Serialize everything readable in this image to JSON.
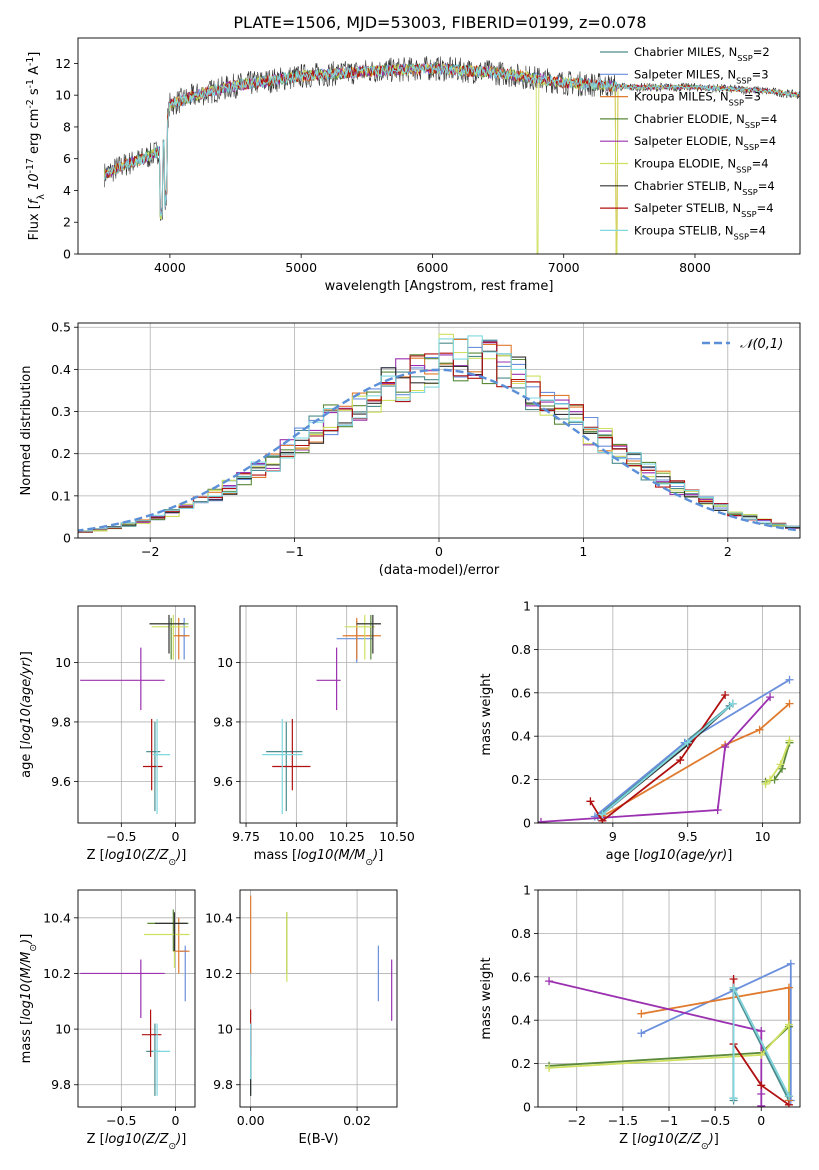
{
  "title": "PLATE=1506, MJD=53003, FIBERID=0199, z=0.078",
  "models": [
    {
      "label": "Chabrier MILES, N$_{SSP}$=2",
      "imf": "Chabrier",
      "lib": "MILES",
      "n_ssp": 2,
      "color": "#4c8c8c"
    },
    {
      "label": "Salpeter MILES, N$_{SSP}$=3",
      "imf": "Salpeter",
      "lib": "MILES",
      "n_ssp": 3,
      "color": "#6a8fdc"
    },
    {
      "label": "Kroupa MILES, N$_{SSP}$=3",
      "imf": "Kroupa",
      "lib": "MILES",
      "n_ssp": 3,
      "color": "#e07a2e"
    },
    {
      "label": "Chabrier ELODIE, N$_{SSP}$=4",
      "imf": "Chabrier",
      "lib": "ELODIE",
      "n_ssp": 4,
      "color": "#5a8a3a"
    },
    {
      "label": "Salpeter ELODIE, N$_{SSP}$=4",
      "imf": "Salpeter",
      "lib": "ELODIE",
      "n_ssp": 4,
      "color": "#9b30b0"
    },
    {
      "label": "Kroupa ELODIE, N$_{SSP}$=4",
      "imf": "Kroupa",
      "lib": "ELODIE",
      "n_ssp": 4,
      "color": "#cfe060"
    },
    {
      "label": "Chabrier STELIB, N$_{SSP}$=4",
      "imf": "Chabrier",
      "lib": "STELIB",
      "n_ssp": 4,
      "color": "#333333"
    },
    {
      "label": "Salpeter STELIB, N$_{SSP}$=4",
      "imf": "Salpeter",
      "lib": "STELIB",
      "n_ssp": 4,
      "color": "#b01010"
    },
    {
      "label": "Kroupa STELIB, N$_{SSP}$=4",
      "imf": "Kroupa",
      "lib": "STELIB",
      "n_ssp": 4,
      "color": "#7fd8e0"
    }
  ],
  "chart_data": [
    {
      "id": "spectrum",
      "type": "line",
      "xlabel": "wavelength [Angstrom, rest frame]",
      "ylabel": "Flux [$f_\\lambda 10^{-17}$ erg cm$^{-2}$ s$^{-1}$ A$^{-1}$]",
      "xlim": [
        3300,
        8800
      ],
      "ylim": [
        0,
        13.6
      ],
      "xticks": [
        4000,
        5000,
        6000,
        7000,
        8000
      ],
      "yticks": [
        0,
        2,
        4,
        6,
        8,
        10,
        12
      ],
      "grid": false,
      "legend": "right",
      "continuum": [
        [
          3500,
          5.0
        ],
        [
          3650,
          5.6
        ],
        [
          3800,
          6.0
        ],
        [
          3950,
          6.6
        ],
        [
          4000,
          9.4
        ],
        [
          4200,
          10.0
        ],
        [
          4500,
          10.6
        ],
        [
          5000,
          11.2
        ],
        [
          5500,
          11.5
        ],
        [
          6000,
          11.7
        ],
        [
          6500,
          11.4
        ],
        [
          7000,
          10.8
        ],
        [
          7500,
          10.5
        ],
        [
          8000,
          10.5
        ],
        [
          8500,
          10.3
        ],
        [
          8800,
          10.0
        ]
      ]
    },
    {
      "id": "residuals",
      "type": "histogram",
      "xlabel": "(data-model)/error",
      "ylabel": "Normed distribution",
      "xlim": [
        -2.5,
        2.5
      ],
      "ylim": [
        0,
        0.51
      ],
      "xticks": [
        -2,
        -1,
        0,
        1,
        2
      ],
      "yticks": [
        0,
        0.1,
        0.2,
        0.3,
        0.4,
        0.5
      ],
      "grid": true,
      "legend": "top-right",
      "reference_label": "$\\mathcal{N}(0,1)$",
      "reference_color": "#5b8fd8",
      "bin_width": 0.1
    },
    {
      "id": "age-vs-Z",
      "type": "errorbar",
      "xlabel": "Z [$\\log_{10}(Z/Z_\\odot)$]",
      "ylabel": "age  [$\\log_{10}(age/yr)$]",
      "xlim": [
        -0.9,
        0.18
      ],
      "ylim": [
        9.46,
        10.19
      ],
      "xticks": [
        -0.5,
        0.0
      ],
      "yticks": [
        9.6,
        9.8,
        10.0
      ],
      "grid": true,
      "points": [
        {
          "model": 0,
          "x": -0.19,
          "y": 9.7,
          "xerr": [
            0.08,
            0.05
          ],
          "yerr": [
            0.2,
            0.1
          ]
        },
        {
          "model": 1,
          "x": 0.08,
          "y": 10.09,
          "xerr": [
            0.05,
            0.02
          ],
          "yerr": [
            0.08,
            0.06
          ]
        },
        {
          "model": 2,
          "x": 0.03,
          "y": 10.09,
          "xerr": [
            0.05,
            0.1
          ],
          "yerr": [
            0.08,
            0.06
          ]
        },
        {
          "model": 3,
          "x": -0.04,
          "y": 10.13,
          "xerr": [
            0.2,
            0.16
          ],
          "yerr": [
            0.12,
            0.02
          ]
        },
        {
          "model": 4,
          "x": -0.32,
          "y": 9.94,
          "xerr": [
            0.56,
            0.22
          ],
          "yerr": [
            0.1,
            0.11
          ]
        },
        {
          "model": 5,
          "x": -0.02,
          "y": 10.12,
          "xerr": [
            0.2,
            0.14
          ],
          "yerr": [
            0.11,
            0.04
          ]
        },
        {
          "model": 6,
          "x": -0.06,
          "y": 10.13,
          "xerr": [
            0.18,
            0.14
          ],
          "yerr": [
            0.1,
            0.03
          ]
        },
        {
          "model": 7,
          "x": -0.22,
          "y": 9.65,
          "xerr": [
            0.08,
            0.1
          ],
          "yerr": [
            0.08,
            0.16
          ]
        },
        {
          "model": 8,
          "x": -0.17,
          "y": 9.69,
          "xerr": [
            0.04,
            0.12
          ],
          "yerr": [
            0.2,
            0.12
          ]
        }
      ]
    },
    {
      "id": "age-vs-mass",
      "type": "errorbar",
      "xlabel": "mass [$\\log_{10}(M/M_\\odot)$]",
      "ylabel": "",
      "xlim": [
        9.72,
        10.5
      ],
      "ylim": [
        9.46,
        10.19
      ],
      "xticks": [
        9.75,
        10.0,
        10.25,
        10.5
      ],
      "xticklabels": [
        "9.75",
        "10.00",
        "10.25",
        "10.50"
      ],
      "yticks": [
        9.6,
        9.8,
        10.0
      ],
      "grid": true,
      "points": [
        {
          "model": 0,
          "x": 9.95,
          "y": 9.7,
          "xerr": [
            0.1,
            0.08
          ],
          "yerr": [
            0.2,
            0.1
          ]
        },
        {
          "model": 1,
          "x": 10.3,
          "y": 10.08,
          "xerr": [
            0.1,
            0.08
          ],
          "yerr": [
            0.08,
            0.06
          ]
        },
        {
          "model": 2,
          "x": 10.3,
          "y": 10.09,
          "xerr": [
            0.07,
            0.12
          ],
          "yerr": [
            0.08,
            0.06
          ]
        },
        {
          "model": 3,
          "x": 10.37,
          "y": 10.13,
          "xerr": [
            0.07,
            0.05
          ],
          "yerr": [
            0.12,
            0.03
          ]
        },
        {
          "model": 4,
          "x": 10.2,
          "y": 9.94,
          "xerr": [
            0.1,
            0.02
          ],
          "yerr": [
            0.1,
            0.11
          ]
        },
        {
          "model": 5,
          "x": 10.34,
          "y": 10.12,
          "xerr": [
            0.1,
            0.05
          ],
          "yerr": [
            0.11,
            0.04
          ]
        },
        {
          "model": 6,
          "x": 10.38,
          "y": 10.13,
          "xerr": [
            0.08,
            0.04
          ],
          "yerr": [
            0.1,
            0.03
          ]
        },
        {
          "model": 7,
          "x": 9.98,
          "y": 9.65,
          "xerr": [
            0.1,
            0.09
          ],
          "yerr": [
            0.08,
            0.16
          ]
        },
        {
          "model": 8,
          "x": 9.93,
          "y": 9.69,
          "xerr": [
            0.1,
            0.1
          ],
          "yerr": [
            0.2,
            0.12
          ]
        }
      ]
    },
    {
      "id": "weight-vs-age",
      "type": "line",
      "xlabel": "age  [$\\log_{10}(age/yr)$]",
      "ylabel": "mass weight",
      "xlim": [
        8.5,
        10.25
      ],
      "ylim": [
        0,
        1.0
      ],
      "xticks": [
        9.0,
        9.5,
        10.0
      ],
      "yticks": [
        0,
        0.2,
        0.4,
        0.6,
        0.8,
        1.0
      ],
      "grid": true,
      "series": [
        {
          "model": 0,
          "x": [
            8.9,
            9.48,
            9.78
          ],
          "y": [
            0.03,
            0.37,
            0.54
          ]
        },
        {
          "model": 1,
          "x": [
            8.88,
            9.48,
            10.18
          ],
          "y": [
            0.03,
            0.37,
            0.66
          ]
        },
        {
          "model": 2,
          "x": [
            8.93,
            9.75,
            9.98,
            10.18
          ],
          "y": [
            0.03,
            0.36,
            0.43,
            0.55
          ]
        },
        {
          "model": 3,
          "x": [
            10.02,
            10.08,
            10.13,
            10.18
          ],
          "y": [
            0.19,
            0.2,
            0.25,
            0.37
          ]
        },
        {
          "model": 4,
          "x": [
            8.52,
            9.7,
            9.75,
            10.05
          ],
          "y": [
            0.005,
            0.06,
            0.35,
            0.58
          ]
        },
        {
          "model": 5,
          "x": [
            10.02,
            10.05,
            10.12,
            10.18
          ],
          "y": [
            0.18,
            0.2,
            0.27,
            0.38
          ]
        },
        {
          "model": 6,
          "x": [
            8.93,
            9.5,
            9.8
          ],
          "y": [
            0.04,
            0.36,
            0.55
          ]
        },
        {
          "model": 7,
          "x": [
            8.85,
            8.93,
            9.45,
            9.75
          ],
          "y": [
            0.1,
            0.01,
            0.29,
            0.59
          ]
        },
        {
          "model": 8,
          "x": [
            8.93,
            9.5,
            9.8
          ],
          "y": [
            0.04,
            0.37,
            0.55
          ]
        }
      ]
    },
    {
      "id": "mass-vs-Z",
      "type": "errorbar",
      "xlabel": "Z [$\\log_{10}(Z/Z_\\odot)$]",
      "ylabel": "mass [$\\log_{10}(M/M_\\odot)$]",
      "xlim": [
        -0.9,
        0.18
      ],
      "ylim": [
        9.72,
        10.5
      ],
      "xticks": [
        -0.5,
        0.0
      ],
      "yticks": [
        9.8,
        10.0,
        10.2,
        10.4
      ],
      "grid": true,
      "points": [
        {
          "model": 0,
          "x": -0.19,
          "y": 9.92,
          "xerr": [
            0.08,
            0.05
          ],
          "yerr": [
            0.16,
            0.1
          ]
        },
        {
          "model": 1,
          "x": 0.09,
          "y": 10.28,
          "xerr": [
            0.05,
            0.02
          ],
          "yerr": [
            0.18,
            0.02
          ]
        },
        {
          "model": 2,
          "x": 0.03,
          "y": 10.28,
          "xerr": [
            0.05,
            0.1
          ],
          "yerr": [
            0.08,
            0.12
          ]
        },
        {
          "model": 3,
          "x": -0.02,
          "y": 10.38,
          "xerr": [
            0.24,
            0.14
          ],
          "yerr": [
            0.1,
            0.05
          ]
        },
        {
          "model": 4,
          "x": -0.32,
          "y": 10.2,
          "xerr": [
            0.56,
            0.22
          ],
          "yerr": [
            0.16,
            0.05
          ]
        },
        {
          "model": 5,
          "x": -0.01,
          "y": 10.34,
          "xerr": [
            0.28,
            0.14
          ],
          "yerr": [
            0.12,
            0.04
          ]
        },
        {
          "model": 6,
          "x": -0.01,
          "y": 10.38,
          "xerr": [
            0.18,
            0.12
          ],
          "yerr": [
            0.1,
            0.04
          ]
        },
        {
          "model": 7,
          "x": -0.23,
          "y": 9.98,
          "xerr": [
            0.08,
            0.1
          ],
          "yerr": [
            0.08,
            0.09
          ]
        },
        {
          "model": 8,
          "x": -0.17,
          "y": 9.92,
          "xerr": [
            0.04,
            0.12
          ],
          "yerr": [
            0.16,
            0.1
          ]
        }
      ]
    },
    {
      "id": "mass-vs-ebv",
      "type": "errorbar",
      "xlabel": "E(B-V)",
      "ylabel": "",
      "xlim": [
        -0.002,
        0.0275
      ],
      "ylim": [
        9.72,
        10.5
      ],
      "xticks": [
        0.0,
        0.02
      ],
      "xticklabels": [
        "0.00",
        "0.02"
      ],
      "yticks": [
        9.8,
        10.0,
        10.2,
        10.4
      ],
      "grid": true,
      "points": [
        {
          "model": 0,
          "x": 0.0,
          "y": 9.92,
          "xerr": [
            0,
            0
          ],
          "yerr": [
            0.16,
            0.1
          ]
        },
        {
          "model": 1,
          "x": 0.024,
          "y": 10.2,
          "xerr": [
            0,
            0
          ],
          "yerr": [
            0.1,
            0.1
          ]
        },
        {
          "model": 2,
          "x": 0.0,
          "y": 10.28,
          "xerr": [
            0,
            0
          ],
          "yerr": [
            0.08,
            0.2
          ]
        },
        {
          "model": 3,
          "x": 0.0068,
          "y": 10.32,
          "xerr": [
            0,
            0
          ],
          "yerr": [
            0.12,
            0.1
          ]
        },
        {
          "model": 4,
          "x": 0.0265,
          "y": 10.15,
          "xerr": [
            0,
            0
          ],
          "yerr": [
            0.12,
            0.1
          ]
        },
        {
          "model": 5,
          "x": 0.0068,
          "y": 10.27,
          "xerr": [
            0,
            0
          ],
          "yerr": [
            0.1,
            0.15
          ]
        },
        {
          "model": 6,
          "x": 0.0,
          "y": 9.92,
          "xerr": [
            0,
            0
          ],
          "yerr": [
            0.16,
            0.1
          ]
        },
        {
          "model": 7,
          "x": 0.0,
          "y": 9.98,
          "xerr": [
            0,
            0
          ],
          "yerr": [
            0.08,
            0.09
          ]
        },
        {
          "model": 8,
          "x": 0.0,
          "y": 9.92,
          "xerr": [
            0,
            0
          ],
          "yerr": [
            0.1,
            0.1
          ]
        }
      ]
    },
    {
      "id": "weight-vs-Z",
      "type": "line",
      "xlabel": "Z [$\\log_{10}(Z/Z_\\odot)$]",
      "ylabel": "mass weight",
      "xlim": [
        -2.42,
        0.42
      ],
      "ylim": [
        0,
        1.0
      ],
      "xticks": [
        -2.0,
        -1.5,
        -1.0,
        -0.5,
        0.0
      ],
      "yticks": [
        0,
        0.2,
        0.4,
        0.6,
        0.8,
        1.0
      ],
      "grid": true,
      "series": [
        {
          "model": 0,
          "x": [
            -0.3,
            -0.3,
            0.3
          ],
          "y": [
            0.03,
            0.54,
            0.03
          ]
        },
        {
          "model": 1,
          "x": [
            -1.3,
            0.32,
            0.32
          ],
          "y": [
            0.34,
            0.66,
            0.03
          ]
        },
        {
          "model": 2,
          "x": [
            -1.3,
            0.3,
            0.3
          ],
          "y": [
            0.43,
            0.55,
            0.03
          ]
        },
        {
          "model": 3,
          "x": [
            -2.3,
            0.0,
            0.3,
            0.3
          ],
          "y": [
            0.19,
            0.25,
            0.37,
            0.05
          ]
        },
        {
          "model": 4,
          "x": [
            -2.3,
            0.0,
            0.0,
            0.0
          ],
          "y": [
            0.58,
            0.35,
            0.06,
            0.005
          ]
        },
        {
          "model": 5,
          "x": [
            -2.3,
            0.0,
            0.3,
            0.3
          ],
          "y": [
            0.18,
            0.24,
            0.38,
            0.05
          ]
        },
        {
          "model": 6,
          "x": [
            -0.3,
            -0.3,
            0.3
          ],
          "y": [
            0.04,
            0.55,
            0.05
          ]
        },
        {
          "model": 7,
          "x": [
            -0.3,
            -0.3,
            0.0,
            0.3
          ],
          "y": [
            0.59,
            0.29,
            0.1,
            0.01
          ]
        },
        {
          "model": 8,
          "x": [
            -0.3,
            -0.3,
            0.3
          ],
          "y": [
            0.04,
            0.55,
            0.05
          ]
        }
      ]
    }
  ]
}
